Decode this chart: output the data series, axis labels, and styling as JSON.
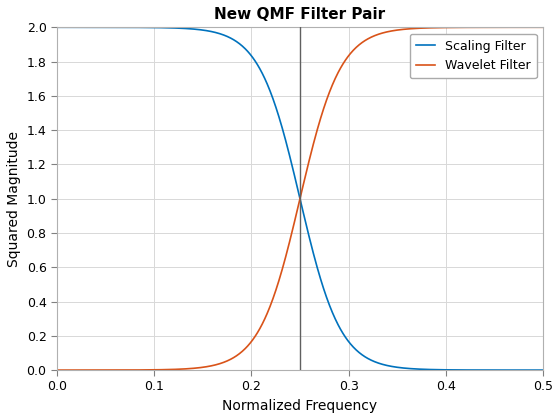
{
  "title": "New QMF Filter Pair",
  "xlabel": "Normalized Frequency",
  "ylabel": "Squared Magnitude",
  "xlim": [
    0,
    0.5
  ],
  "ylim": [
    0,
    2
  ],
  "vline_x": 0.25,
  "vline_color": "#606060",
  "scaling_color": "#0072BD",
  "wavelet_color": "#D95319",
  "scaling_label": "Scaling Filter",
  "wavelet_label": "Wavelet Filter",
  "title_fontsize": 11,
  "label_fontsize": 10,
  "legend_fontsize": 9,
  "xticks": [
    0,
    0.1,
    0.2,
    0.3,
    0.4,
    0.5
  ],
  "yticks": [
    0,
    0.2,
    0.4,
    0.6,
    0.8,
    1.0,
    1.2,
    1.4,
    1.6,
    1.8,
    2.0
  ],
  "n_points": 1000,
  "steepness": 12
}
